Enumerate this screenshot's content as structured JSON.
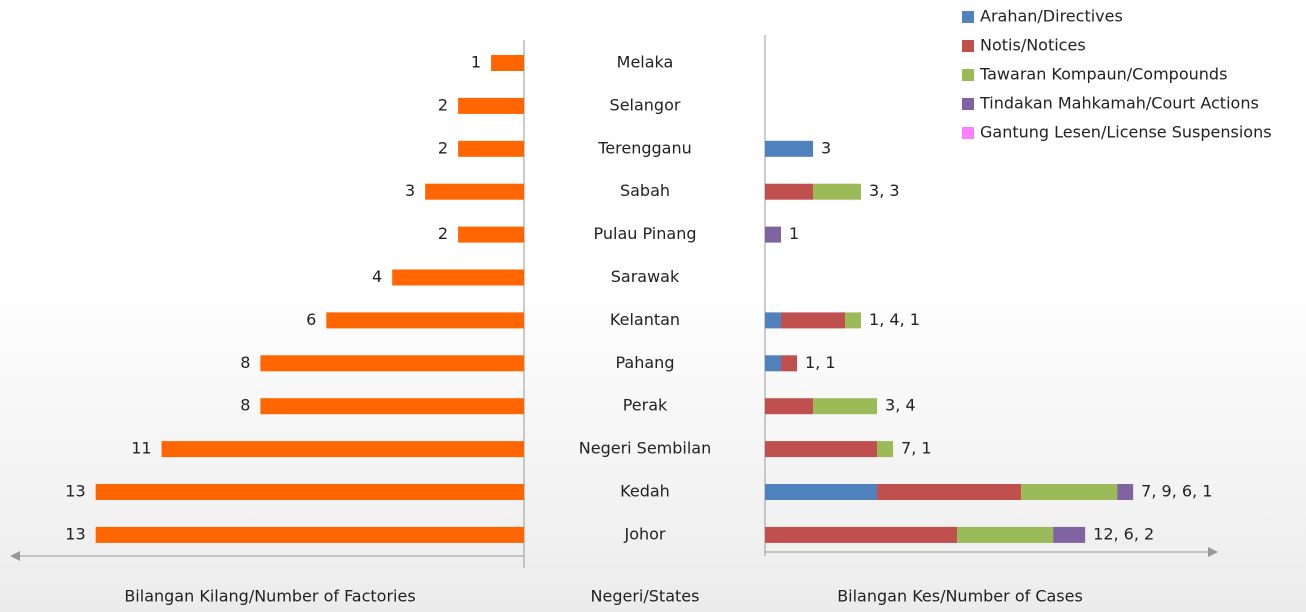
{
  "chart_data": [
    {
      "type": "hbar-left",
      "categories": [
        "Melaka",
        "Selangor",
        "Terengganu",
        "Sabah",
        "Pulau Pinang",
        "Sarawak",
        "Kelantan",
        "Pahang",
        "Perak",
        "Negeri Sembilan",
        "Kedah",
        "Johor"
      ],
      "values": [
        1,
        2,
        2,
        3,
        2,
        4,
        6,
        8,
        8,
        11,
        13,
        13
      ],
      "color": "#ff6600",
      "xlabel": "Bilangan Kilang/Number of Factories",
      "ylabel": "Negeri/States",
      "xlim": [
        0,
        15.6
      ]
    },
    {
      "type": "stacked-hbar",
      "xlabel": "Bilangan Kes/Number of Cases",
      "xlim": [
        0,
        28.3
      ],
      "series": [
        {
          "name": "Arahan/Directives",
          "color": "#4f81bd",
          "values": [
            0,
            0,
            3,
            0,
            0,
            0,
            1,
            1,
            0,
            0,
            7,
            0
          ]
        },
        {
          "name": "Notis/Notices",
          "color": "#c0504d",
          "values": [
            0,
            0,
            0,
            3,
            0,
            0,
            4,
            1,
            3,
            7,
            9,
            12
          ]
        },
        {
          "name": "Tawaran Kompaun/Compounds",
          "color": "#9bbb59",
          "values": [
            0,
            0,
            0,
            3,
            0,
            0,
            1,
            0,
            4,
            1,
            6,
            6
          ]
        },
        {
          "name": "Tindakan Mahkamah/Court Actions",
          "color": "#8064a2",
          "values": [
            0,
            0,
            0,
            0,
            1,
            0,
            0,
            0,
            0,
            0,
            1,
            2
          ]
        },
        {
          "name": "Gantung Lesen/License Suspensions",
          "color": "#ff80ff",
          "values": [
            0,
            0,
            0,
            0,
            0,
            0,
            0,
            0,
            0,
            0,
            0,
            0
          ]
        }
      ],
      "value_labels": [
        null,
        null,
        "3",
        "3, 3",
        "1",
        null,
        "1, 4, 1",
        "1, 1",
        "3, 4",
        "7, 1",
        "7, 9, 6, 1",
        "12, 6, 2"
      ],
      "legend": "top-right"
    }
  ]
}
